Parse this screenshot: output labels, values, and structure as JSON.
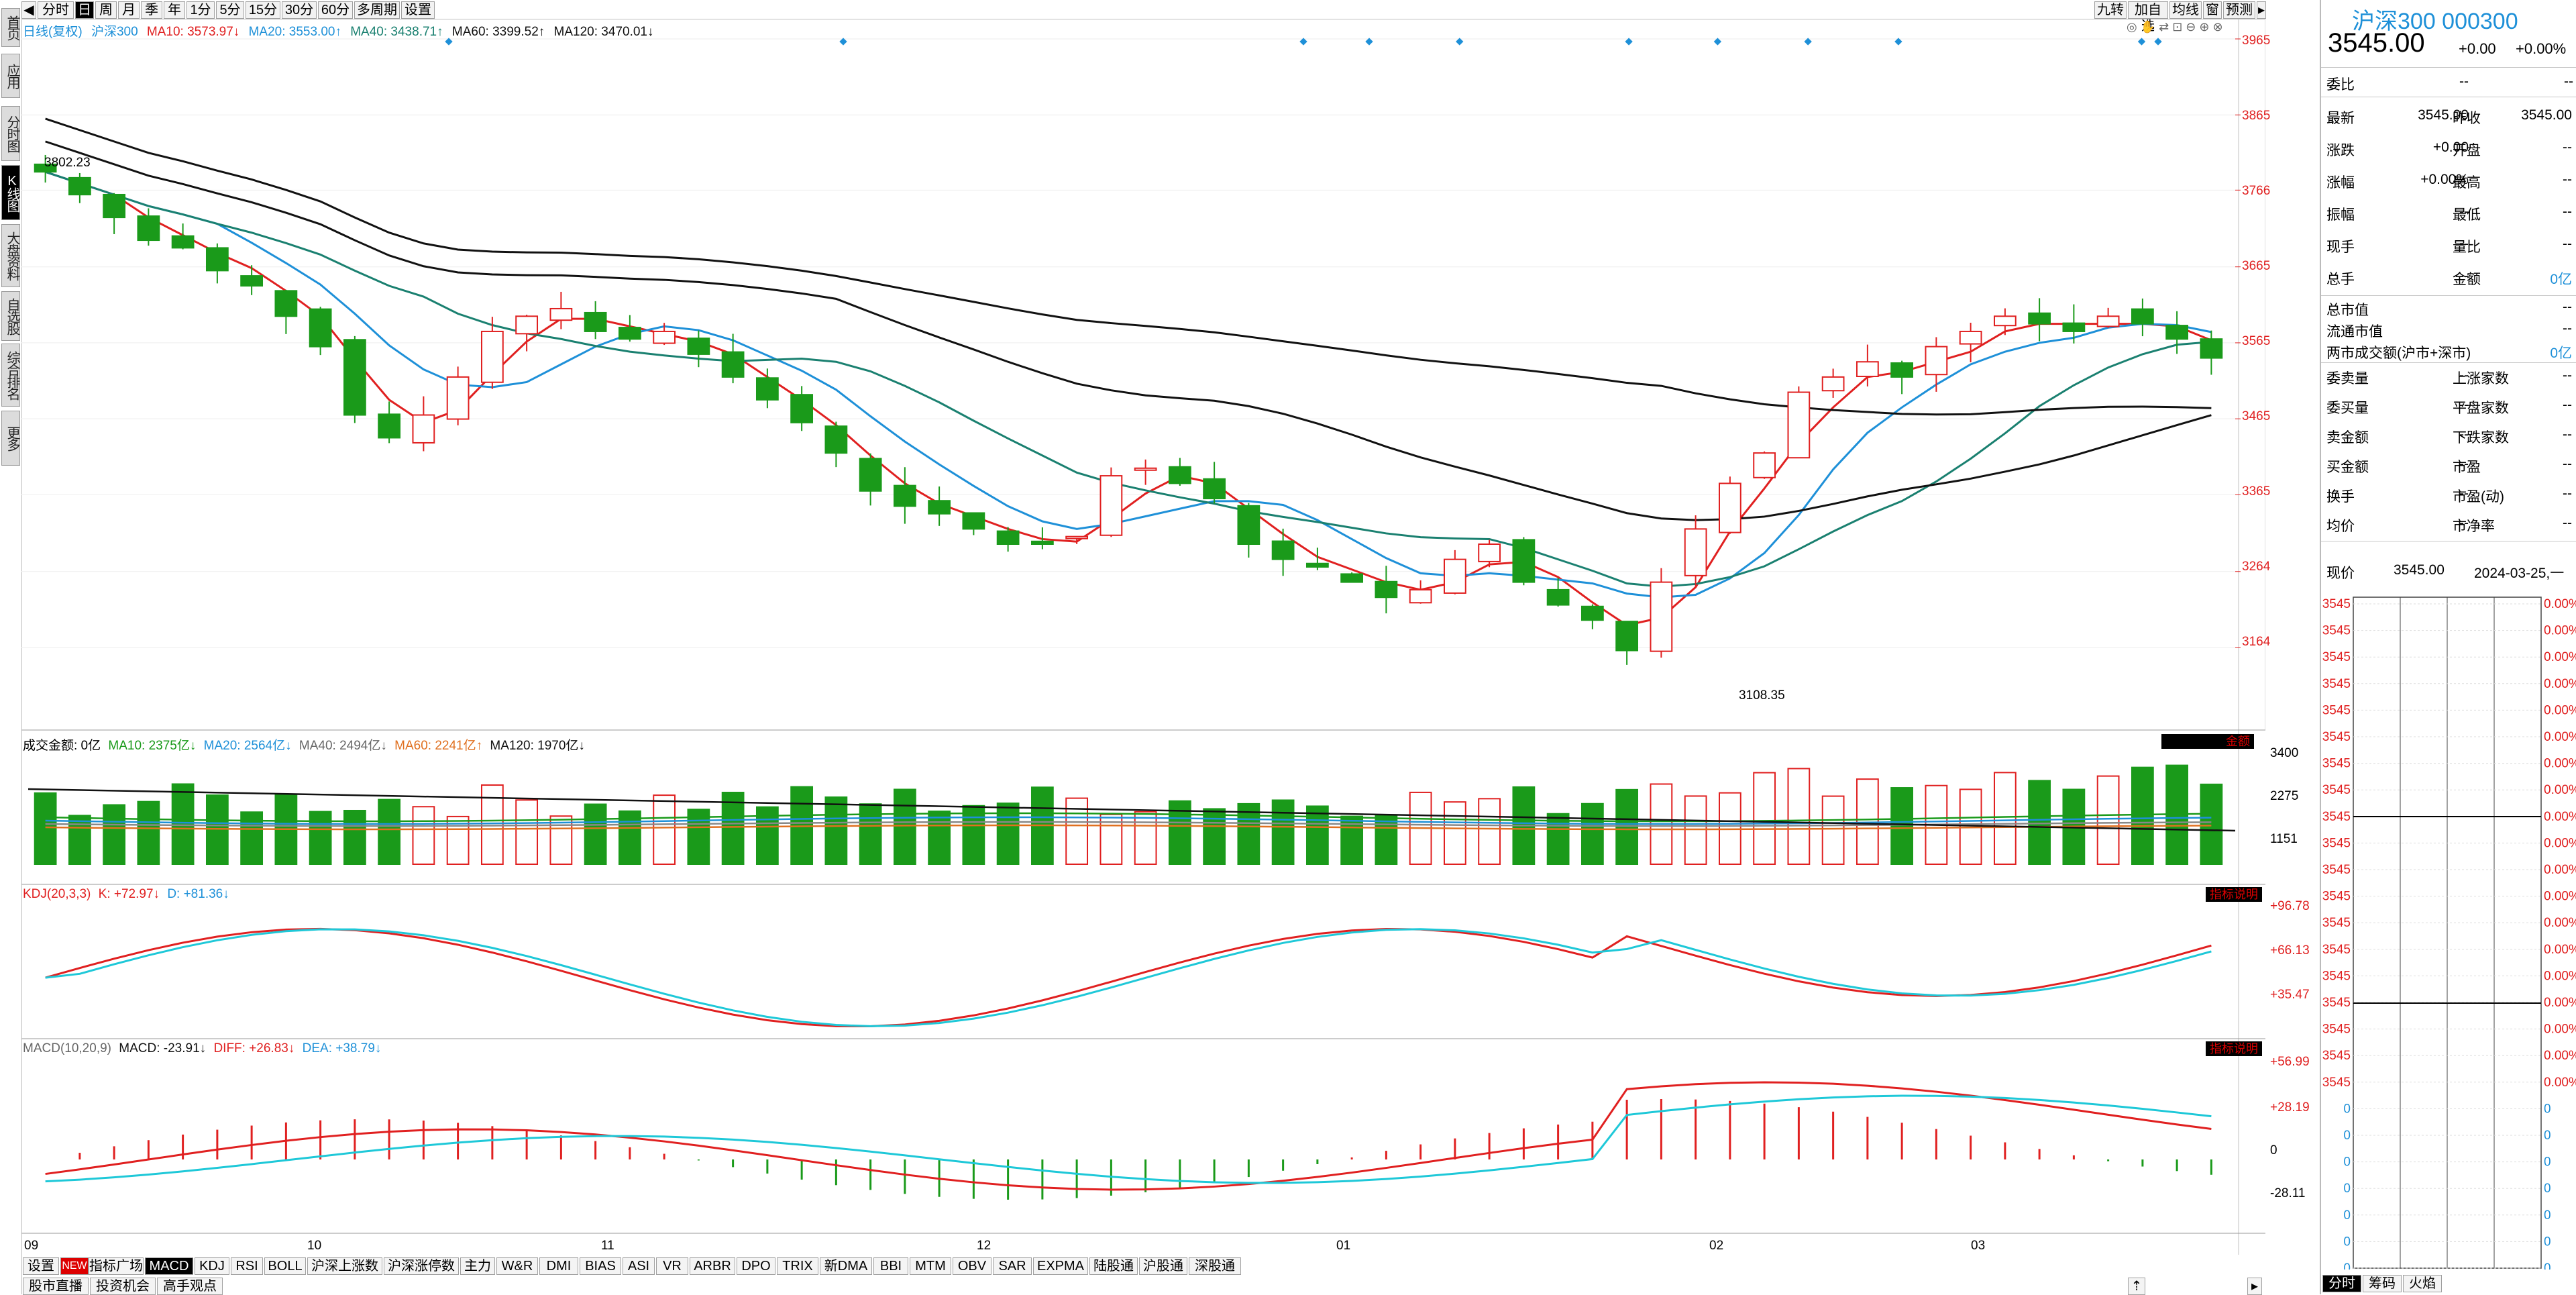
{
  "left_nav": [
    "首页",
    "应用",
    "分时图",
    "K线图",
    "大盘资料",
    "自选股",
    "综合排名",
    "更多"
  ],
  "left_nav_active": 3,
  "period_tabs": [
    "分时",
    "日",
    "周",
    "月",
    "季",
    "年",
    "1分",
    "5分",
    "15分",
    "30分",
    "60分",
    "多周期",
    "设置"
  ],
  "period_active": 1,
  "top_right_tabs": [
    "九转",
    "加自选",
    "均线",
    "窗",
    "预测"
  ],
  "main_legend": {
    "prefix": "日线(复权)",
    "name": "沪深300",
    "ma10": "MA10: 3573.97↓",
    "ma20": "MA20: 3553.00↑",
    "ma40": "MA40: 3438.71↑",
    "ma60": "MA60: 3399.52↑",
    "ma120": "MA120: 3470.01↓"
  },
  "price_axis": [
    "3965",
    "3865",
    "3766",
    "3665",
    "3565",
    "3465",
    "3365",
    "3264",
    "3164"
  ],
  "price_annotations": {
    "high": "3802.23",
    "low": "3108.35"
  },
  "volume_legend": {
    "title": "成交金额: 0亿",
    "ma10": "MA10: 2375亿↓",
    "ma20": "MA20: 2564亿↓",
    "ma40": "MA40: 2494亿↓",
    "ma60": "MA60: 2241亿↑",
    "ma120": "MA120: 1970亿↓",
    "badge": "金额"
  },
  "volume_axis": [
    "3400",
    "2275",
    "1151"
  ],
  "kdj_legend": {
    "title": "KDJ(20,3,3)",
    "k": "K: +72.97↓",
    "d": "D: +81.36↓",
    "badge": "指标说明"
  },
  "kdj_axis": [
    "+96.78",
    "+66.13",
    "+35.47"
  ],
  "macd_legend": {
    "title": "MACD(10,20,9)",
    "macd": "MACD: -23.91↓",
    "diff": "DIFF: +26.83↓",
    "dea": "DEA: +38.79↓",
    "badge": "指标说明"
  },
  "macd_axis": [
    "+56.99",
    "+28.19",
    "0",
    "-28.11"
  ],
  "date_axis": [
    "09",
    "10",
    "11",
    "12",
    "01",
    "02",
    "03"
  ],
  "bottom_tabs": [
    "设置",
    "指标广场",
    "MACD",
    "KDJ",
    "RSI",
    "BOLL",
    "沪深上涨数",
    "沪深涨停数",
    "主力",
    "W&R",
    "DMI",
    "BIAS",
    "ASI",
    "VR",
    "ARBR",
    "DPO",
    "TRIX",
    "新DMA",
    "BBI",
    "MTM",
    "OBV",
    "SAR",
    "EXPMA",
    "陆股通",
    "沪股通",
    "深股通"
  ],
  "bottom_tab_new_badge": "NEW",
  "bottom_tab_active": "MACD",
  "bottom_tabs2": [
    "股市直播",
    "投资机会",
    "高手观点"
  ],
  "right_panel": {
    "title": "沪深300 000300",
    "price": "3545.00",
    "change": "+0.00",
    "change_pct": "+0.00%",
    "weibi_label": "委比",
    "weibi_val": "--",
    "rows": [
      {
        "l1": "最新",
        "v1": "3545.00",
        "l2": "昨收",
        "v2": "3545.00"
      },
      {
        "l1": "涨跌",
        "v1": "+0.00",
        "l2": "开盘",
        "v2": "--"
      },
      {
        "l1": "涨幅",
        "v1": "+0.00%",
        "l2": "最高",
        "v2": "--"
      },
      {
        "l1": "振幅",
        "v1": "--",
        "l2": "最低",
        "v2": "--"
      },
      {
        "l1": "现手",
        "v1": "--",
        "l2": "量比",
        "v2": "--"
      },
      {
        "l1": "总手",
        "v1": "--",
        "l2": "金额",
        "v2": "0亿"
      }
    ],
    "cap_rows": [
      {
        "l": "总市值",
        "v": "--"
      },
      {
        "l": "流通市值",
        "v": "--"
      },
      {
        "l": "两市成交额(沪市+深市)",
        "v": "0亿"
      }
    ],
    "stat_rows": [
      {
        "l1": "委卖量",
        "v1": "--",
        "l2": "上涨家数",
        "v2": "--"
      },
      {
        "l1": "委买量",
        "v1": "--",
        "l2": "平盘家数",
        "v2": "--"
      },
      {
        "l1": "卖金额",
        "v1": "--",
        "l2": "下跌家数",
        "v2": "--"
      },
      {
        "l1": "买金额",
        "v1": "--",
        "l2": "市盈",
        "v2": "--"
      },
      {
        "l1": "换手",
        "v1": "--",
        "l2": "市盈(动)",
        "v2": "--"
      },
      {
        "l1": "均价",
        "v1": "--",
        "l2": "市净率",
        "v2": "--"
      }
    ],
    "now_label": "现价",
    "now_price": "3545.00",
    "now_date": "2024-03-25,一",
    "mini_prices": [
      "3545",
      "3545",
      "3545",
      "3545",
      "3545",
      "3545",
      "3545",
      "3545",
      "3545",
      "3545",
      "3545",
      "3545",
      "3545",
      "3545",
      "3545",
      "3545",
      "3545",
      "3545",
      "3545",
      "0",
      "0",
      "0",
      "0",
      "0",
      "0",
      "0",
      "0"
    ],
    "mini_pcts": [
      "0.00%",
      "0.00%",
      "0.00%",
      "0.00%",
      "0.00%",
      "0.00%",
      "0.00%",
      "0.00%",
      "0.00%",
      "0.00%",
      "0.00%",
      "0.00%",
      "0.00%",
      "0.00%",
      "0.00%",
      "0.00%",
      "0.00%",
      "0.00%",
      "0.00%",
      "0",
      "0",
      "0",
      "0",
      "0",
      "0",
      "0",
      "0"
    ],
    "bottom_tabs": [
      "分时",
      "筹码",
      "火焰"
    ]
  },
  "colors": {
    "up": "#e02020",
    "down": "#1a9a1a",
    "ma10": "#e02020",
    "ma20": "#1e90d8",
    "ma40": "#1a8070",
    "ma60": "#111111",
    "ma120": "#111111"
  },
  "chart_data": {
    "type": "candlestick",
    "x": [
      "09",
      "10",
      "11",
      "12",
      "01",
      "02",
      "03"
    ],
    "ohlc_approx_close": [
      3790,
      3760,
      3730,
      3700,
      3690,
      3660,
      3640,
      3600,
      3560,
      3470,
      3440,
      3470,
      3520,
      3580,
      3600,
      3610,
      3580,
      3570,
      3580,
      3550,
      3520,
      3490,
      3460,
      3420,
      3370,
      3350,
      3340,
      3320,
      3300,
      3300,
      3310,
      3390,
      3400,
      3380,
      3360,
      3300,
      3280,
      3270,
      3250,
      3230,
      3240,
      3280,
      3300,
      3250,
      3220,
      3200,
      3160,
      3250,
      3320,
      3380,
      3420,
      3500,
      3520,
      3540,
      3520,
      3560,
      3580,
      3600,
      3590,
      3580,
      3600,
      3590,
      3570,
      3545
    ],
    "ylim": [
      3108.35,
      3965
    ]
  }
}
